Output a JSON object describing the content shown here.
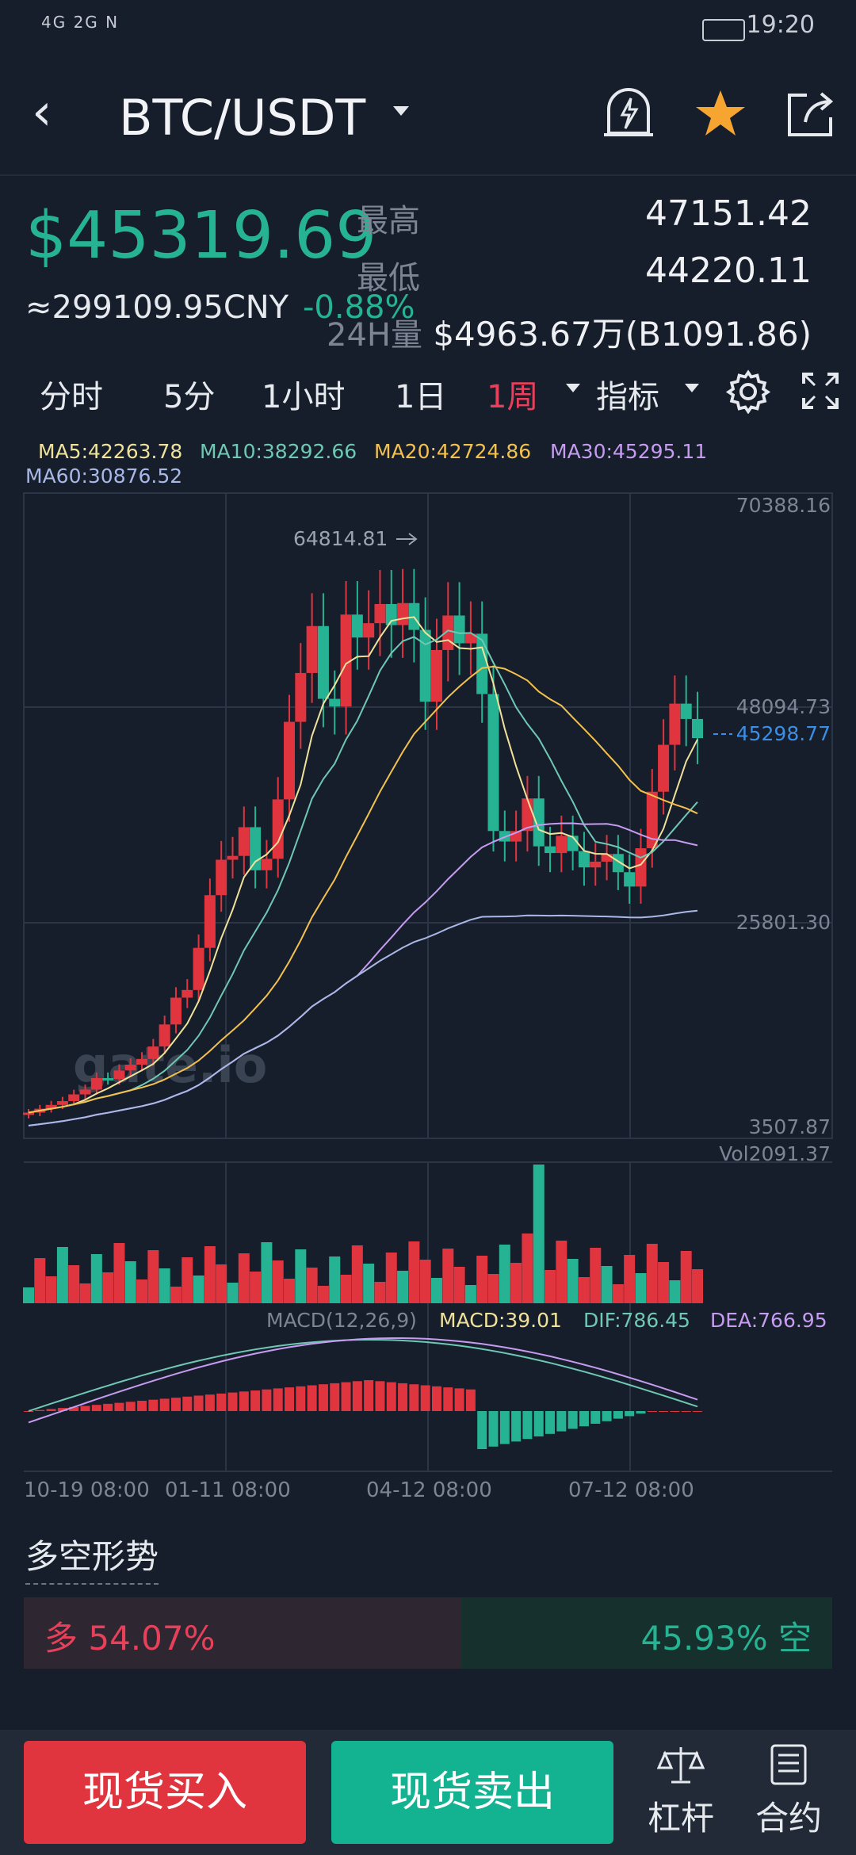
{
  "status_bar": {
    "left": "4G 2G N",
    "time": "19:20"
  },
  "header": {
    "pair": "BTC/USDT"
  },
  "ticker": {
    "price": "$45319.69",
    "cny": "≈299109.95CNY",
    "change": "-0.88%",
    "high_label": "最高",
    "high": "47151.42",
    "low_label": "最低",
    "low": "44220.11",
    "vol_label": "24H量",
    "vol": "$4963.67万(B1091.86)"
  },
  "tabs": [
    {
      "label": "分时"
    },
    {
      "label": "5分"
    },
    {
      "label": "1小时"
    },
    {
      "label": "1日"
    },
    {
      "label": "1周"
    },
    {
      "label": "指标"
    }
  ],
  "ma_legend": {
    "ma5": "MA5:42263.78",
    "ma10": "MA10:38292.66",
    "ma20": "MA20:42724.86",
    "ma30": "MA30:45295.11",
    "ma60": "MA60:30876.52"
  },
  "colors": {
    "up": "#26b393",
    "down": "#e0343e",
    "ma5": "#f0e29a",
    "ma10": "#6fc8b4",
    "ma20": "#f2c14e",
    "ma30": "#c69cf0",
    "ma60": "#a9b8e6"
  },
  "chart_data": {
    "type": "candlestick",
    "y_ticks": [
      "70388.16",
      "48094.73",
      "25801.30",
      "3507.87"
    ],
    "max_label": "64814.81",
    "current_price_label": "45298.77",
    "x_ticks": [
      "10-19 08:00",
      "01-11 08:00",
      "04-12 08:00",
      "07-12 08:00"
    ],
    "watermark": "gate.io",
    "volume_label": "Vol2091.37",
    "macd_legend": {
      "macd": "MACD(12,26,9)",
      "macd_val": "MACD:39.01",
      "dif": "DIF:786.45",
      "dea": "DEA:766.95"
    }
  },
  "long_short": {
    "title": "多空形势",
    "long_text": "多 54.07%",
    "short_text": "45.93% 空",
    "long_pct": 54.07
  },
  "bottom": {
    "buy": "现货买入",
    "sell": "现货卖出",
    "lever": "杠杆",
    "contract": "合约"
  }
}
